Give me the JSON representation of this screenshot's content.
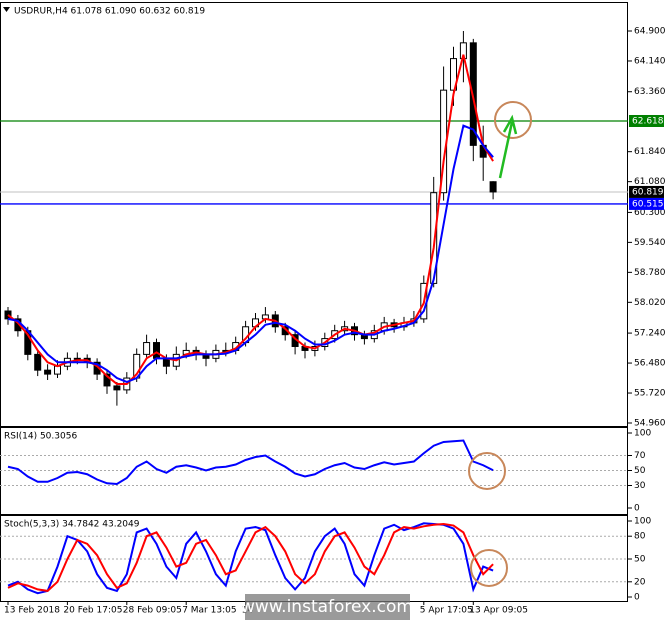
{
  "chart_data": [
    {
      "type": "candlestick",
      "title": "USDRUR,H4  61.078 61.090 60.632 60.819",
      "categories": [
        "13 Feb 2018",
        null,
        null,
        null,
        null,
        null,
        "20 Feb 17:05",
        null,
        null,
        null,
        null,
        null,
        "28 Feb 09:05",
        null,
        null,
        null,
        null,
        null,
        "7 Mar 13:05",
        null,
        null,
        null,
        null,
        null,
        "14",
        null,
        null,
        null,
        null,
        null,
        null,
        null,
        null,
        null,
        null,
        null,
        null,
        null,
        null,
        null,
        null,
        null,
        "5 Apr 17:05",
        null,
        null,
        null,
        null,
        "13 Apr 09:05",
        null,
        null
      ],
      "open": [
        57.8,
        57.6,
        57.3,
        56.7,
        56.3,
        56.2,
        56.4,
        56.6,
        56.6,
        56.5,
        56.2,
        55.9,
        55.8,
        56.1,
        56.7,
        57.0,
        56.6,
        56.4,
        56.7,
        56.8,
        56.7,
        56.6,
        56.8,
        56.8,
        57.0,
        57.4,
        57.6,
        57.7,
        57.4,
        57.2,
        56.9,
        56.8,
        56.9,
        57.1,
        57.3,
        57.4,
        57.2,
        57.1,
        57.3,
        57.5,
        57.4,
        57.5,
        57.6,
        58.5,
        60.8,
        63.4,
        64.2,
        64.6,
        62.0,
        61.078
      ],
      "high": [
        57.9,
        57.7,
        57.4,
        56.8,
        56.45,
        56.55,
        56.75,
        56.75,
        56.7,
        56.6,
        56.3,
        56.0,
        56.25,
        56.85,
        57.2,
        57.1,
        56.7,
        56.9,
        57.0,
        56.9,
        56.8,
        56.95,
        57.0,
        57.15,
        57.55,
        57.75,
        57.9,
        57.8,
        57.5,
        57.3,
        57.0,
        57.05,
        57.25,
        57.45,
        57.55,
        57.5,
        57.3,
        57.45,
        57.65,
        57.6,
        57.65,
        57.8,
        58.7,
        61.2,
        64.0,
        64.5,
        64.9,
        64.7,
        62.5,
        61.09
      ],
      "low": [
        57.45,
        57.15,
        56.55,
        56.15,
        56.05,
        56.1,
        56.3,
        56.45,
        56.35,
        56.05,
        55.7,
        55.4,
        55.7,
        56.0,
        56.6,
        56.45,
        56.2,
        56.3,
        56.6,
        56.55,
        56.4,
        56.5,
        56.65,
        56.7,
        56.9,
        57.3,
        57.5,
        57.25,
        57.05,
        56.7,
        56.6,
        56.65,
        56.8,
        57.0,
        57.2,
        57.05,
        56.95,
        57.0,
        57.2,
        57.25,
        57.3,
        57.4,
        57.5,
        58.4,
        60.6,
        63.0,
        63.6,
        61.6,
        61.1,
        60.632
      ],
      "close": [
        57.6,
        57.3,
        56.7,
        56.3,
        56.2,
        56.4,
        56.6,
        56.6,
        56.5,
        56.2,
        55.9,
        55.8,
        56.1,
        56.7,
        57.0,
        56.6,
        56.4,
        56.7,
        56.8,
        56.7,
        56.6,
        56.8,
        56.8,
        57.0,
        57.4,
        57.6,
        57.7,
        57.4,
        57.2,
        56.9,
        56.8,
        56.9,
        57.1,
        57.3,
        57.4,
        57.2,
        57.1,
        57.3,
        57.5,
        57.4,
        57.5,
        57.6,
        58.5,
        60.8,
        63.4,
        64.2,
        64.6,
        62.0,
        61.7,
        60.819
      ],
      "up_color": "#ffffff",
      "down_color": "#000000",
      "series": [
        {
          "color": "#ff0000",
          "values": [
            57.7,
            57.5,
            57.2,
            56.8,
            56.5,
            56.4,
            56.5,
            56.55,
            56.55,
            56.4,
            56.15,
            55.95,
            55.95,
            56.2,
            56.6,
            56.75,
            56.6,
            56.55,
            56.7,
            56.75,
            56.7,
            56.7,
            56.75,
            56.85,
            57.1,
            57.4,
            57.6,
            57.55,
            57.35,
            57.1,
            56.9,
            56.85,
            57.0,
            57.2,
            57.35,
            57.3,
            57.2,
            57.25,
            57.4,
            57.45,
            57.5,
            57.55,
            58.0,
            59.4,
            61.6,
            63.3,
            64.3,
            63.2,
            62.0,
            61.6
          ]
        },
        {
          "color": "#0000ff",
          "values": [
            57.6,
            57.55,
            57.3,
            57.0,
            56.7,
            56.5,
            56.5,
            56.5,
            56.5,
            56.45,
            56.3,
            56.1,
            56.0,
            56.1,
            56.4,
            56.6,
            56.6,
            56.6,
            56.65,
            56.7,
            56.7,
            56.7,
            56.72,
            56.8,
            57.0,
            57.2,
            57.45,
            57.5,
            57.45,
            57.3,
            57.1,
            56.95,
            56.95,
            57.05,
            57.2,
            57.25,
            57.2,
            57.2,
            57.3,
            57.35,
            57.42,
            57.5,
            57.8,
            58.6,
            60.0,
            61.4,
            62.5,
            62.4,
            62.0,
            61.7
          ]
        }
      ],
      "ylim": [
        54.96,
        64.9
      ],
      "yticks": [
        {
          "value": 54.96,
          "label": "54.960"
        },
        {
          "value": 55.72,
          "label": "55.720"
        },
        {
          "value": 56.48,
          "label": "56.480"
        },
        {
          "value": 57.24,
          "label": "57.240"
        },
        {
          "value": 58.02,
          "label": "58.020"
        },
        {
          "value": 58.78,
          "label": "58.780"
        },
        {
          "value": 59.54,
          "label": "59.540"
        },
        {
          "value": 60.3,
          "label": "60.300"
        },
        {
          "value": 61.08,
          "label": "61.080"
        },
        {
          "value": 61.84,
          "label": "61.840"
        },
        {
          "value": 63.36,
          "label": "63.360"
        },
        {
          "value": 64.14,
          "label": "64.140"
        },
        {
          "value": 64.9,
          "label": "64.900"
        }
      ],
      "levels": [
        {
          "value": 62.618,
          "label": "62.618",
          "color": "#008000"
        },
        {
          "value": 60.515,
          "label": "60.515",
          "color": "#0000ff"
        }
      ],
      "last_price": {
        "value": 60.819,
        "label": "60.819",
        "color": "#000000"
      }
    },
    {
      "type": "line",
      "title": "RSI(14) 50.3056",
      "series": [
        {
          "color": "#0000ff",
          "values": [
            55,
            52,
            42,
            35,
            35,
            40,
            47,
            48,
            45,
            38,
            33,
            32,
            40,
            55,
            62,
            52,
            47,
            55,
            57,
            54,
            50,
            54,
            55,
            58,
            64,
            68,
            70,
            62,
            55,
            46,
            42,
            45,
            52,
            57,
            60,
            54,
            52,
            57,
            61,
            58,
            60,
            62,
            73,
            83,
            88,
            89,
            90,
            62,
            57,
            50.3056
          ]
        }
      ],
      "ylim": [
        0,
        100
      ],
      "yticks": [
        100,
        70,
        50,
        30,
        0
      ],
      "levels": [
        70,
        50,
        30
      ]
    },
    {
      "type": "line",
      "title": "Stoch(5,3,3) 34.7842 43.2049",
      "series": [
        {
          "color": "#0000ff",
          "values": [
            15,
            20,
            10,
            5,
            8,
            40,
            80,
            75,
            60,
            30,
            12,
            8,
            30,
            85,
            90,
            70,
            40,
            25,
            70,
            85,
            60,
            30,
            15,
            60,
            90,
            92,
            88,
            55,
            25,
            10,
            25,
            60,
            80,
            90,
            70,
            30,
            15,
            55,
            90,
            95,
            88,
            92,
            97,
            96,
            95,
            90,
            70,
            10,
            40,
            34.7842
          ]
        },
        {
          "color": "#ff0000",
          "values": [
            12,
            18,
            15,
            10,
            8,
            20,
            50,
            75,
            70,
            55,
            30,
            12,
            18,
            45,
            80,
            85,
            65,
            40,
            45,
            70,
            75,
            55,
            30,
            35,
            60,
            85,
            92,
            80,
            60,
            30,
            18,
            30,
            60,
            80,
            85,
            65,
            40,
            30,
            55,
            85,
            92,
            90,
            93,
            95,
            96,
            94,
            85,
            55,
            30,
            43.2049
          ]
        }
      ],
      "ylim": [
        0,
        100
      ],
      "yticks": [
        100,
        80,
        50,
        20,
        0
      ],
      "levels": [
        80,
        50,
        20
      ]
    }
  ],
  "watermark": "www.instaforex.com"
}
